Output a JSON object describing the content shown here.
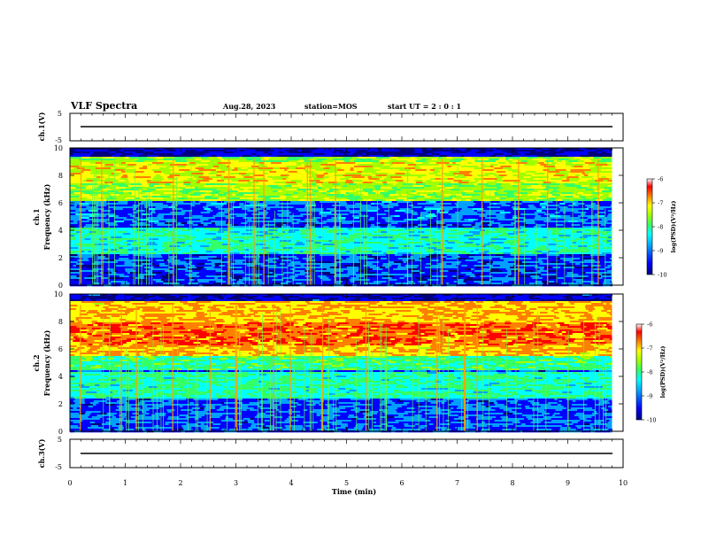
{
  "header": {
    "title": "VLF Spectra",
    "date": "Aug.28, 2023",
    "station": "station=MOS",
    "start": "start UT =  2 : 0 : 1"
  },
  "colors": {
    "colormap": [
      "#00007f",
      "#0000ff",
      "#00a0ff",
      "#00ffff",
      "#33ff66",
      "#a0ff00",
      "#ffff00",
      "#ff8000",
      "#ff0000",
      "#ffffff"
    ],
    "background": "#000080",
    "frame": "#000000"
  },
  "chart_data": [
    {
      "type": "line",
      "name": "ch1-voltage",
      "ylabel": "ch.1(V)",
      "ylim": [
        -5,
        5
      ],
      "yticks": [
        "5",
        "-5"
      ],
      "x": [
        0,
        9.8
      ],
      "values": [
        0,
        0
      ]
    },
    {
      "type": "heatmap",
      "name": "ch1-spectrogram",
      "ylabel": "ch.1\nFrequency (kHz)",
      "ylim": [
        0,
        10
      ],
      "yticks": [
        "0",
        "2",
        "4",
        "6",
        "8",
        "10"
      ],
      "xlim": [
        0,
        10
      ],
      "data_end_min": 9.8,
      "colorbar": {
        "label": "log(PSD)(V²/Hz)",
        "range": [
          -10,
          -6
        ],
        "ticks": [
          "-6",
          "-7",
          "-8",
          "-9",
          "-10"
        ]
      }
    },
    {
      "type": "heatmap",
      "name": "ch2-spectrogram",
      "ylabel": "ch.2\nFrequency (kHz)",
      "ylim": [
        0,
        10
      ],
      "yticks": [
        "0",
        "2",
        "4",
        "6",
        "8",
        "10"
      ],
      "xlim": [
        0,
        10
      ],
      "data_end_min": 9.8,
      "colorbar": {
        "label": "log(PSD)(V²/Hz)",
        "range": [
          -10,
          -6
        ],
        "ticks": [
          "-6",
          "-7",
          "-8",
          "-9",
          "-10"
        ]
      }
    },
    {
      "type": "line",
      "name": "ch3-voltage",
      "ylabel": "ch.3(V)",
      "ylim": [
        -5,
        5
      ],
      "yticks": [
        "5",
        "-5"
      ],
      "x": [
        0,
        9.8
      ],
      "values": [
        0,
        0
      ]
    }
  ],
  "xaxis": {
    "label": "Time (min)",
    "range": [
      0,
      10
    ],
    "ticks": [
      "0",
      "1",
      "2",
      "3",
      "4",
      "5",
      "6",
      "7",
      "8",
      "9",
      "10"
    ]
  }
}
